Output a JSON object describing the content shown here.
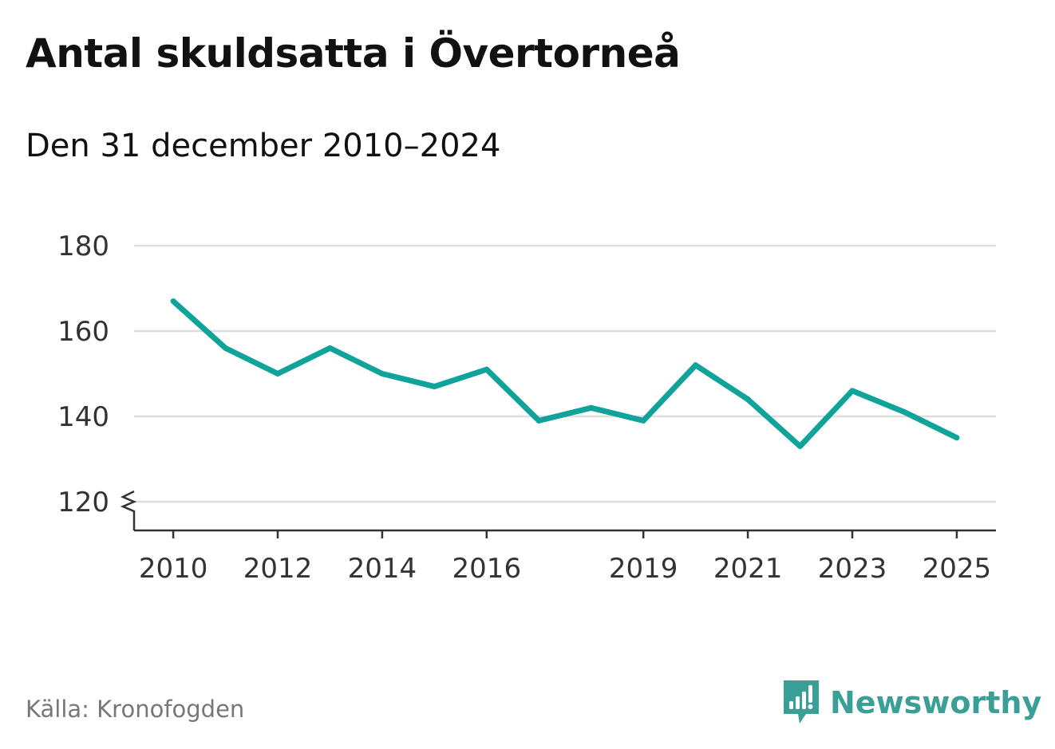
{
  "title": "Antal skuldsatta i Övertorneå",
  "subtitle": "Den 31 december 2010–2024",
  "source": "Källa: Kronofogden",
  "brand": {
    "name": "Newsworthy",
    "icon": "newsworthy-logo-icon",
    "color": "#3a9f96"
  },
  "chart_data": {
    "type": "line",
    "title": "Antal skuldsatta i Övertorneå",
    "subtitle": "Den 31 december 2010–2024",
    "xlabel": "",
    "ylabel": "",
    "x": [
      2010,
      2011,
      2012,
      2013,
      2014,
      2015,
      2016,
      2017,
      2018,
      2019,
      2020,
      2021,
      2022,
      2023,
      2024,
      2025
    ],
    "series": [
      {
        "values": [
          167,
          156,
          150,
          156,
          150,
          147,
          151,
          139,
          142,
          139,
          152,
          144,
          133,
          146,
          141,
          135
        ],
        "color": "#0fa39a"
      }
    ],
    "xlim": [
      2009.25,
      2025.75
    ],
    "ylim": [
      120,
      180
    ],
    "y_axis_break": true,
    "yticks": [
      120,
      140,
      160,
      180
    ],
    "xticks": [
      2010,
      2012,
      2014,
      2016,
      2019,
      2021,
      2023,
      2025
    ],
    "grid": true,
    "legend": "none"
  }
}
